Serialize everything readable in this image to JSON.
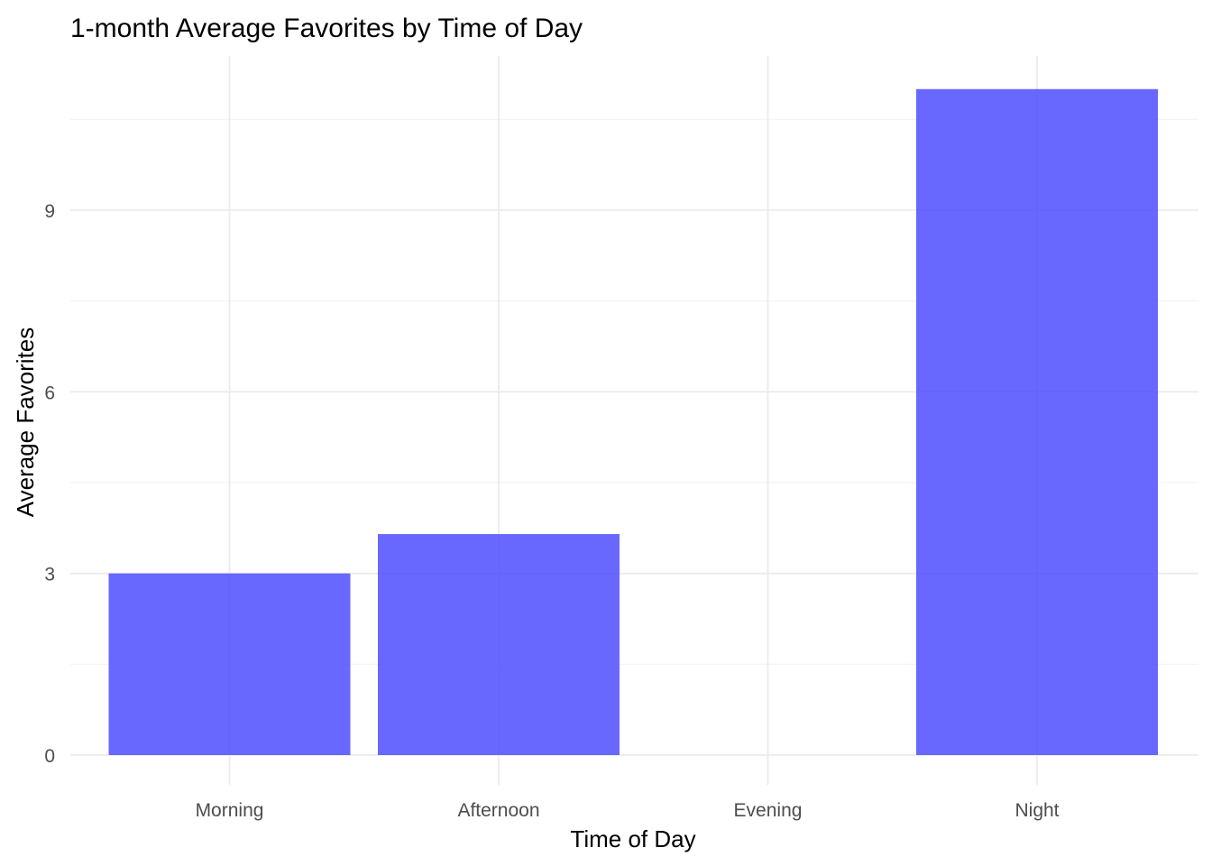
{
  "chart_data": {
    "type": "bar",
    "title": "1-month Average Favorites by Time of Day",
    "xlabel": "Time of Day",
    "ylabel": "Average Favorites",
    "categories": [
      "Morning",
      "Afternoon",
      "Evening",
      "Night"
    ],
    "values": [
      3.0,
      3.65,
      0,
      11.0
    ],
    "ylim": [
      0,
      11.4
    ],
    "yticks": [
      0,
      3,
      6,
      9
    ],
    "ytick_labels": [
      "0",
      "3",
      "6",
      "9"
    ],
    "grid": true,
    "legend": "none",
    "bar_color": "#4d4dff",
    "bar_opacity": 0.85
  }
}
